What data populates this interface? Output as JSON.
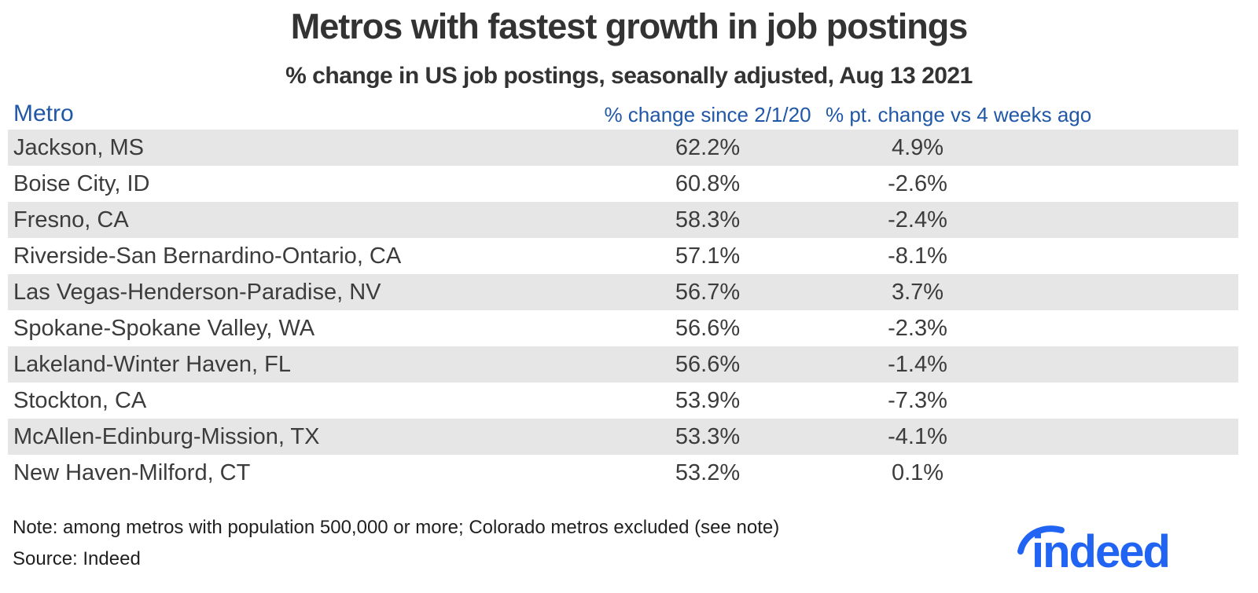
{
  "header": {
    "title": "Metros with fastest growth in job postings",
    "subtitle": "% change in US job postings, seasonally adjusted, Aug 13 2021"
  },
  "table": {
    "columns": {
      "metro": "Metro",
      "change_since": "% change since 2/1/20",
      "pt_change_4wk": "% pt. change vs 4 weeks ago"
    },
    "rows": [
      {
        "metro": "Jackson, MS",
        "change_since": "62.2%",
        "pt_change_4wk": "4.9%"
      },
      {
        "metro": "Boise City, ID",
        "change_since": "60.8%",
        "pt_change_4wk": "-2.6%"
      },
      {
        "metro": "Fresno, CA",
        "change_since": "58.3%",
        "pt_change_4wk": "-2.4%"
      },
      {
        "metro": "Riverside-San Bernardino-Ontario, CA",
        "change_since": "57.1%",
        "pt_change_4wk": "-8.1%"
      },
      {
        "metro": "Las Vegas-Henderson-Paradise, NV",
        "change_since": "56.7%",
        "pt_change_4wk": "3.7%"
      },
      {
        "metro": "Spokane-Spokane Valley, WA",
        "change_since": "56.6%",
        "pt_change_4wk": "-2.3%"
      },
      {
        "metro": "Lakeland-Winter Haven, FL",
        "change_since": "56.6%",
        "pt_change_4wk": "-1.4%"
      },
      {
        "metro": "Stockton, CA",
        "change_since": "53.9%",
        "pt_change_4wk": "-7.3%"
      },
      {
        "metro": "McAllen-Edinburg-Mission, TX",
        "change_since": "53.3%",
        "pt_change_4wk": "-4.1%"
      },
      {
        "metro": "New Haven-Milford, CT",
        "change_since": "53.2%",
        "pt_change_4wk": "0.1%"
      }
    ]
  },
  "footer": {
    "note": "Note: among metros with population 500,000 or more; Colorado metros excluded (see note)",
    "source": "Source: Indeed",
    "logo_text": "indeed"
  },
  "colors": {
    "column_header_blue": "#2057a7",
    "logo_blue": "#2164f3",
    "row_stripe_gray": "#e6e6e6",
    "text_dark": "#333333"
  },
  "chart_data": {
    "type": "table",
    "title": "Metros with fastest growth in job postings",
    "subtitle": "% change in US job postings, seasonally adjusted, Aug 13 2021",
    "columns": [
      "Metro",
      "% change since 2/1/20",
      "% pt. change vs 4 weeks ago"
    ],
    "rows": [
      [
        "Jackson, MS",
        62.2,
        4.9
      ],
      [
        "Boise City, ID",
        60.8,
        -2.6
      ],
      [
        "Fresno, CA",
        58.3,
        -2.4
      ],
      [
        "Riverside-San Bernardino-Ontario, CA",
        57.1,
        -8.1
      ],
      [
        "Las Vegas-Henderson-Paradise, NV",
        56.7,
        3.7
      ],
      [
        "Spokane-Spokane Valley, WA",
        56.6,
        -2.3
      ],
      [
        "Lakeland-Winter Haven, FL",
        56.6,
        -1.4
      ],
      [
        "Stockton, CA",
        53.9,
        -7.3
      ],
      [
        "McAllen-Edinburg-Mission, TX",
        53.3,
        -4.1
      ],
      [
        "New Haven-Milford, CT",
        53.2,
        0.1
      ]
    ],
    "units": "percent",
    "note": "Note: among metros with population 500,000 or more; Colorado metros excluded (see note)",
    "source": "Source: Indeed",
    "layout": {
      "striped_rows": true,
      "stripe_pattern": "odd-gray",
      "value_alignment": "center"
    }
  }
}
